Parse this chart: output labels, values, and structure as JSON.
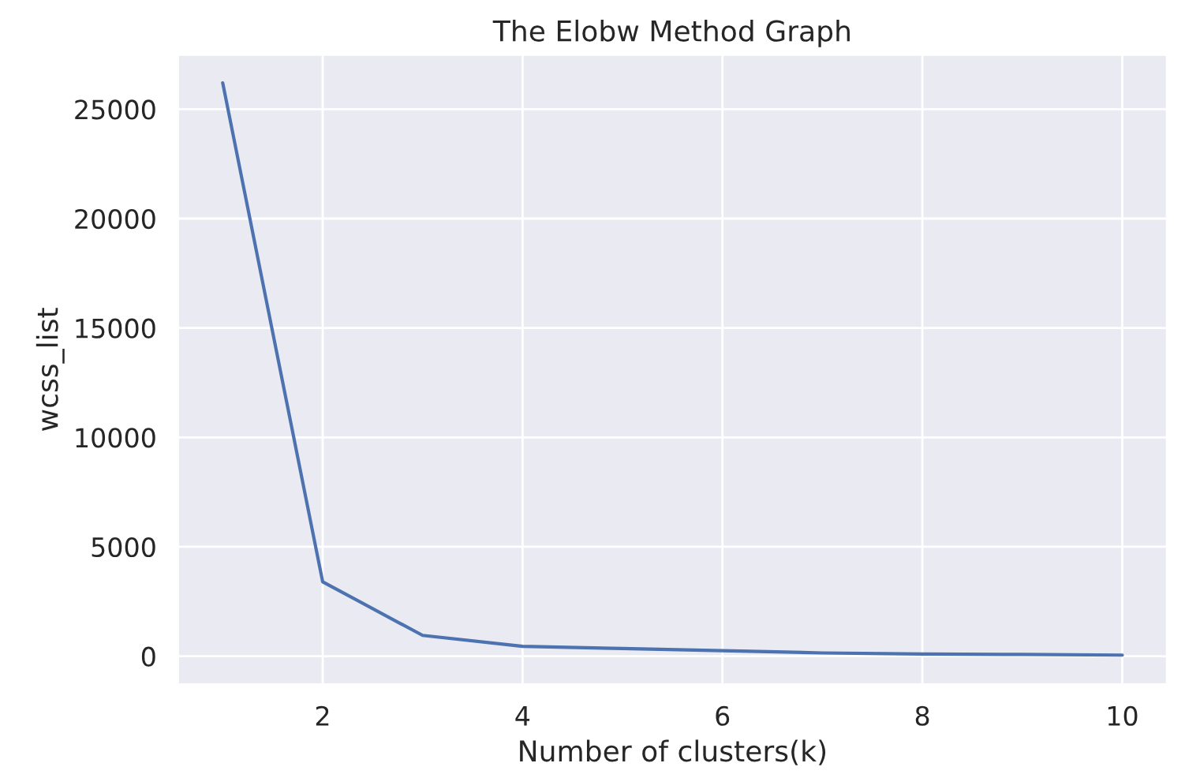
{
  "chart_data": {
    "type": "line",
    "title": "The Elobw Method Graph",
    "xlabel": "Number of clusters(k)",
    "ylabel": "wcss_list",
    "x": [
      1,
      2,
      3,
      4,
      5,
      6,
      7,
      8,
      9,
      10
    ],
    "series": [
      {
        "color": "#4c72b0",
        "values": [
          26200,
          3400,
          950,
          450,
          350,
          250,
          150,
          100,
          80,
          50
        ]
      }
    ],
    "xlim": [
      0.55,
      10.45
    ],
    "xticks": [
      2,
      4,
      6,
      8,
      10
    ],
    "ylim": [
      -1300,
      27500
    ],
    "yticks": [
      0,
      5000,
      10000,
      15000,
      20000,
      25000
    ],
    "grid": true,
    "legend": false,
    "marker": "none",
    "line_style": "solid"
  }
}
